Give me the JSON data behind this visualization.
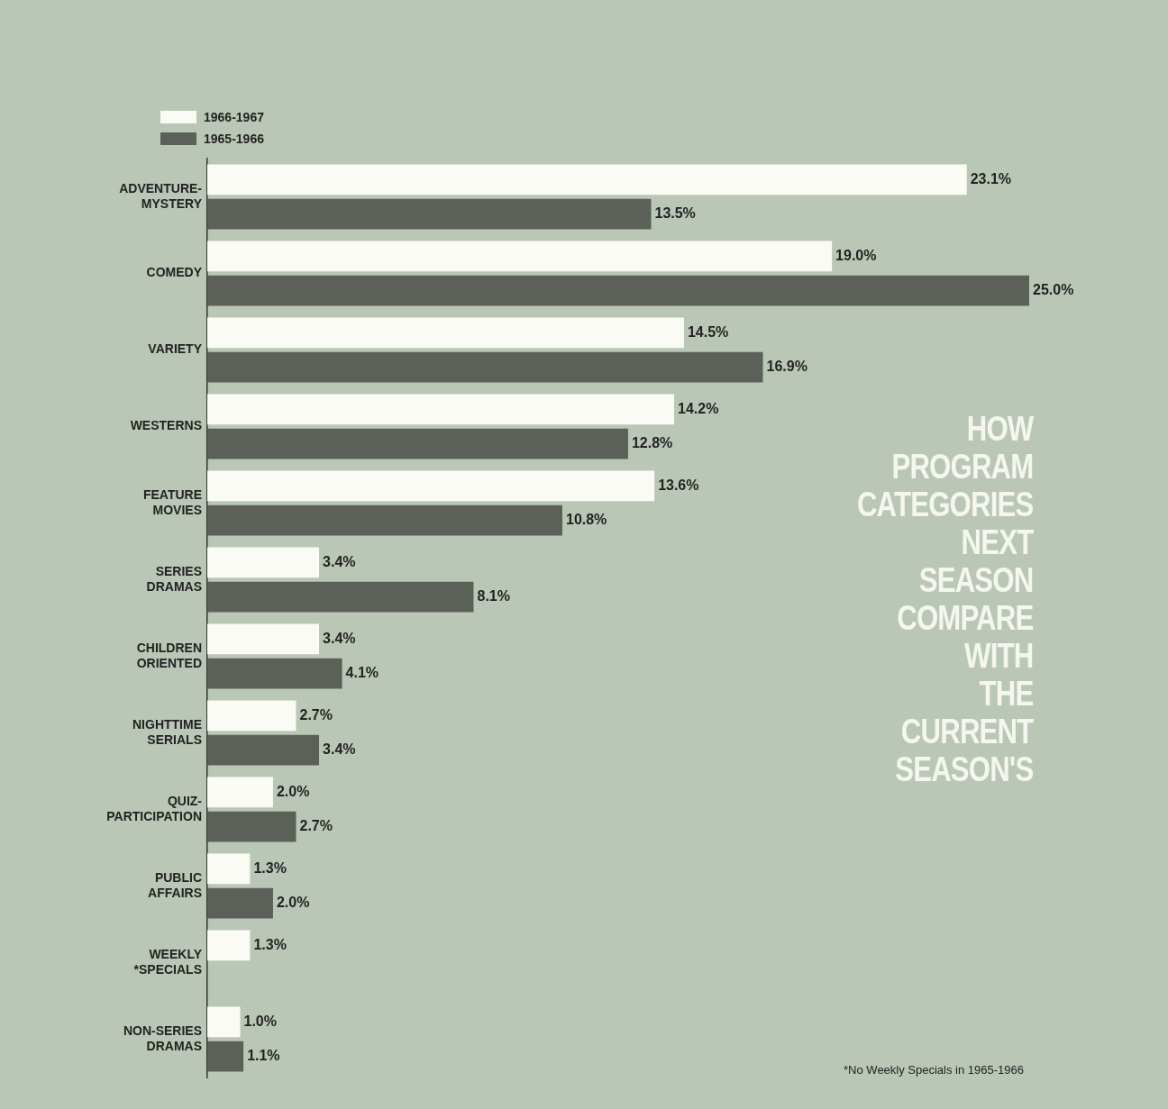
{
  "chart_data": {
    "type": "bar",
    "orientation": "horizontal",
    "title": "HOW PROGRAM CATEGORIES NEXT SEASON COMPARE WITH THE CURRENT SEASON'S",
    "categories": [
      "ADVENTURE-MYSTERY",
      "COMEDY",
      "VARIETY",
      "WESTERNS",
      "FEATURE MOVIES",
      "SERIES DRAMAS",
      "CHILDREN ORIENTED",
      "NIGHTTIME SERIALS",
      "QUIZ-PARTICIPATION",
      "PUBLIC AFFAIRS",
      "WEEKLY *SPECIALS",
      "NON-SERIES DRAMAS"
    ],
    "series": [
      {
        "name": "1966-1967",
        "color": "#fbfbf6",
        "values": [
          23.1,
          19.0,
          14.5,
          14.2,
          13.6,
          3.4,
          3.4,
          2.7,
          2.0,
          1.3,
          1.3,
          1.0
        ],
        "value_labels": [
          "23.1%",
          "19.0%",
          "14.5%",
          "14.2%",
          "13.6%",
          "3.4%",
          "3.4%",
          "2.7%",
          "2.0%",
          "1.3%",
          "1.3%",
          "1.0%"
        ]
      },
      {
        "name": "1965-1966",
        "color": "#5b6159",
        "values": [
          13.5,
          25.0,
          16.9,
          12.8,
          10.8,
          8.1,
          4.1,
          3.4,
          2.7,
          2.0,
          null,
          1.1
        ],
        "value_labels": [
          "13.5%",
          "25.0%",
          "16.9%",
          "12.8%",
          "10.8%",
          "8.1%",
          "4.1%",
          "3.4%",
          "2.7%",
          "2.0%",
          null,
          "1.1%"
        ]
      }
    ],
    "legend": "top left",
    "annotations": [
      "*No Weekly Specials in 1965-1966"
    ]
  }
}
